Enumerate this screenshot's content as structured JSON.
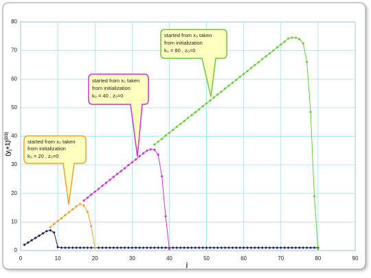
{
  "chart_data": {
    "type": "line",
    "y_label_parts": [
      "(y",
      "j",
      "+1)",
      "(2/3)"
    ],
    "x_label": "j",
    "xlim": [
      0,
      90
    ],
    "xticks": [
      0,
      10,
      20,
      30,
      40,
      50,
      60,
      70,
      80,
      90
    ],
    "ylim": [
      0,
      80
    ],
    "yticks": [
      0,
      10,
      20,
      30,
      40,
      50,
      60,
      70,
      80
    ],
    "grid": true,
    "series": [
      {
        "color": "#1c1c5a",
        "x": [
          1,
          2,
          3,
          4,
          5,
          6,
          7,
          8,
          9,
          10,
          11,
          12,
          13,
          14,
          15,
          16,
          17,
          18,
          19,
          20,
          21,
          22,
          23,
          24,
          25,
          26,
          27,
          28,
          29,
          30,
          31,
          32,
          33,
          34,
          35,
          36,
          37,
          38,
          39,
          40,
          41,
          42,
          43,
          44,
          45,
          46,
          47,
          48,
          49,
          50,
          51,
          52,
          53,
          54,
          55,
          56,
          57,
          58,
          59,
          60,
          61,
          62,
          63,
          64,
          65,
          66,
          67,
          68,
          69,
          70,
          71,
          72,
          73,
          74,
          75,
          76,
          77,
          78,
          79,
          80
        ],
        "values": [
          2,
          2.8,
          3.6,
          4.4,
          5.2,
          6,
          6.8,
          7.1,
          6.3,
          1.2,
          1,
          1,
          1,
          1,
          1,
          1,
          1,
          1,
          1,
          1,
          1,
          1,
          1,
          1,
          1,
          1,
          1,
          1,
          1,
          1,
          1,
          1,
          1,
          1,
          1,
          1,
          1,
          1,
          1,
          1,
          1,
          1,
          1,
          1,
          1,
          1,
          1,
          1,
          1,
          1,
          1,
          1,
          1,
          1,
          1,
          1,
          1,
          1,
          1,
          1,
          1,
          1,
          1,
          1,
          1,
          1,
          1,
          1,
          1,
          1,
          1,
          1,
          1,
          1,
          1,
          1,
          1,
          1,
          1,
          1
        ]
      },
      {
        "color": "#f0a030",
        "x": [
          8,
          9,
          10,
          11,
          12,
          13,
          14,
          15,
          16,
          17,
          18,
          19,
          20
        ],
        "values": [
          8.2,
          9.3,
          10.3,
          11.3,
          12.4,
          13.4,
          14.4,
          15.5,
          16.3,
          15.8,
          13.5,
          8.5,
          1
        ]
      },
      {
        "color": "#cc33cc",
        "x": [
          17,
          18,
          19,
          20,
          21,
          22,
          23,
          24,
          25,
          26,
          27,
          28,
          29,
          30,
          31,
          32,
          33,
          34,
          35,
          36,
          37,
          38,
          39,
          40
        ],
        "values": [
          17.5,
          18.5,
          19.6,
          20.6,
          21.6,
          22.7,
          23.7,
          24.7,
          25.8,
          26.8,
          27.8,
          28.8,
          29.9,
          30.9,
          31.9,
          33,
          34,
          35,
          35.4,
          35.3,
          33.5,
          26,
          12,
          0.5
        ]
      },
      {
        "color": "#66cc33",
        "x": [
          36,
          37,
          38,
          39,
          40,
          41,
          42,
          43,
          44,
          45,
          46,
          47,
          48,
          49,
          50,
          51,
          52,
          53,
          54,
          55,
          56,
          57,
          58,
          59,
          60,
          61,
          62,
          63,
          64,
          65,
          66,
          67,
          68,
          69,
          70,
          71,
          72,
          73,
          74,
          75,
          76,
          77,
          78,
          79,
          80
        ],
        "values": [
          37.1,
          38.1,
          39.1,
          40.2,
          41.2,
          42.2,
          43.3,
          44.3,
          45.3,
          46.4,
          47.4,
          48.4,
          49.4,
          50.5,
          51.5,
          52.5,
          53.6,
          54.6,
          55.6,
          56.7,
          57.7,
          58.7,
          59.7,
          60.8,
          61.8,
          62.8,
          63.9,
          64.9,
          65.9,
          67,
          68,
          69,
          70,
          71.1,
          72.1,
          73.1,
          74.2,
          74.5,
          74.5,
          74,
          72.5,
          66,
          48.5,
          19,
          0.5
        ]
      }
    ],
    "annotations": [
      {
        "lines": [
          "started from x₀ taken",
          "from initialization",
          "k₀ = 20 , z₀=0"
        ]
      },
      {
        "lines": [
          "started from x₀ taken",
          "from initialization",
          "k₀ = 40 , z₀=0"
        ]
      },
      {
        "lines": [
          "started from x₀ taken",
          "from initialization",
          "k₀ = 80 , z₀=0"
        ]
      }
    ]
  }
}
